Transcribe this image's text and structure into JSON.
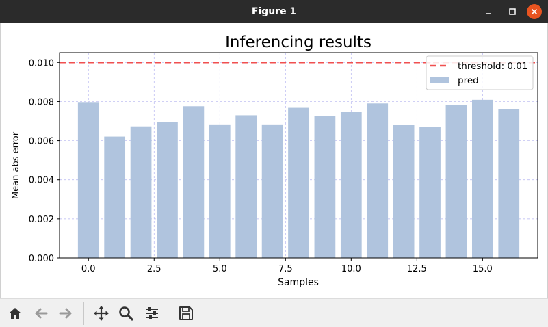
{
  "window": {
    "title": "Figure 1"
  },
  "toolbar": {
    "icons": [
      "home-icon",
      "back-arrow-icon",
      "forward-arrow-icon",
      "pan-icon",
      "zoom-icon",
      "configure-subplots-icon",
      "save-icon"
    ]
  },
  "colors": {
    "bar": "#b0c4de",
    "threshold_line": "#f05050",
    "grid": "#b4b4f0",
    "titlebar": "#2b2b2b",
    "close_button": "#e95420"
  },
  "chart_data": {
    "type": "bar",
    "title": "Inferencing results",
    "xlabel": "Samples",
    "ylabel": "Mean abs error",
    "x": [
      0,
      1,
      2,
      3,
      4,
      5,
      6,
      7,
      8,
      9,
      10,
      11,
      12,
      13,
      14,
      15,
      16
    ],
    "values": [
      0.00797,
      0.00621,
      0.00673,
      0.00694,
      0.00776,
      0.00683,
      0.0073,
      0.00683,
      0.00768,
      0.00725,
      0.00748,
      0.0079,
      0.0068,
      0.00671,
      0.00783,
      0.00809,
      0.00762
    ],
    "xlim": [
      -1.1,
      17.1
    ],
    "ylim": [
      0,
      0.0105
    ],
    "xticks": [
      0.0,
      2.5,
      5.0,
      7.5,
      10.0,
      12.5,
      15.0
    ],
    "xtick_labels": [
      "0.0",
      "2.5",
      "5.0",
      "7.5",
      "10.0",
      "12.5",
      "15.0"
    ],
    "yticks": [
      0.0,
      0.002,
      0.004,
      0.006,
      0.008,
      0.01
    ],
    "ytick_labels": [
      "0.000",
      "0.002",
      "0.004",
      "0.006",
      "0.008",
      "0.010"
    ],
    "threshold": 0.01,
    "grid": true,
    "legend_position": "top-right",
    "legend": [
      {
        "label": "threshold: 0.01",
        "kind": "dashed-line"
      },
      {
        "label": "pred",
        "kind": "patch"
      }
    ]
  }
}
